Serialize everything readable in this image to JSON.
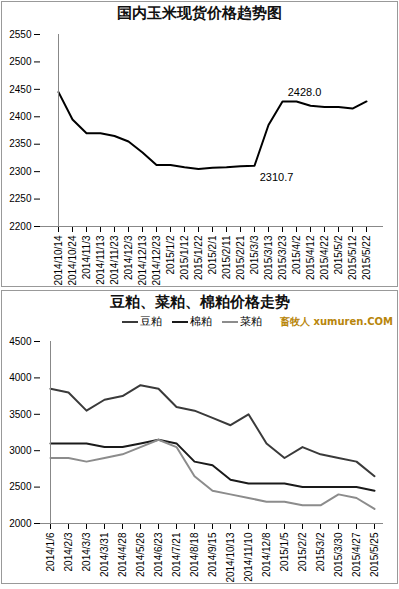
{
  "chart_data": [
    {
      "type": "line",
      "title": "国内玉米现货价格趋势图",
      "x": [
        "2014/10/14",
        "2014/10/24",
        "2014/11/3",
        "2014/11/13",
        "2014/11/23",
        "2014/12/3",
        "2014/12/13",
        "2014/12/23",
        "2015/1/2",
        "2015/1/12",
        "2015/1/22",
        "2015/2/1",
        "2015/2/11",
        "2015/2/21",
        "2015/3/3",
        "2015/3/13",
        "2015/3/23",
        "2015/4/2",
        "2015/4/12",
        "2015/4/22",
        "2015/5/2",
        "2015/5/12",
        "2015/5/22"
      ],
      "values": [
        2445,
        2395,
        2370,
        2370,
        2365,
        2355,
        2335,
        2312,
        2312,
        2308,
        2305,
        2307,
        2308,
        2310,
        2310.7,
        2385,
        2428,
        2428,
        2420,
        2418,
        2418,
        2415,
        2428
      ],
      "color": "#000000",
      "ylim": [
        2200,
        2550
      ],
      "yticks": [
        2200,
        2250,
        2300,
        2350,
        2400,
        2450,
        2500,
        2550
      ],
      "grid": false,
      "annotations": [
        {
          "text": "2428.0",
          "x": "2015/3/23",
          "y": 2428
        },
        {
          "text": "2310.7",
          "x": "2015/3/3",
          "y": 2310.7
        }
      ]
    },
    {
      "type": "line",
      "title": "豆粕、菜粕、棉粕价格走势",
      "x": [
        "2014/1/6",
        "2014/2/3",
        "2014/3/3",
        "2014/3/31",
        "2014/4/28",
        "2014/5/26",
        "2014/6/23",
        "2014/7/21",
        "2014/8/18",
        "2014/9/15",
        "2014/10/13",
        "2014/11/10",
        "2014/12/8",
        "2015/1/5",
        "2015/2/2",
        "2015/3/2",
        "2015/3/30",
        "2015/4/27",
        "2015/5/25"
      ],
      "series": [
        {
          "name": "豆粕",
          "color": "#3a3a3a",
          "values": [
            3850,
            3800,
            3550,
            3700,
            3750,
            3900,
            3850,
            3600,
            3550,
            3450,
            3350,
            3500,
            3100,
            2900,
            3050,
            2950,
            2900,
            2850,
            2650
          ]
        },
        {
          "name": "棉粕",
          "color": "#1a1a1a",
          "values": [
            3100,
            3100,
            3100,
            3050,
            3050,
            3100,
            3150,
            3100,
            2850,
            2800,
            2600,
            2550,
            2550,
            2550,
            2500,
            2500,
            2500,
            2500,
            2450
          ]
        },
        {
          "name": "菜粕",
          "color": "#8c8c8c",
          "values": [
            2900,
            2900,
            2850,
            2900,
            2950,
            3050,
            3150,
            3050,
            2650,
            2450,
            2400,
            2350,
            2300,
            2300,
            2250,
            2250,
            2400,
            2350,
            2200
          ]
        }
      ],
      "ylim": [
        2000,
        4500
      ],
      "yticks": [
        2000,
        2500,
        3000,
        3500,
        4000,
        4500
      ],
      "grid": false,
      "legend": "top"
    }
  ],
  "watermark": {
    "name": "畜牧人",
    "site": "xumuren.COM"
  }
}
